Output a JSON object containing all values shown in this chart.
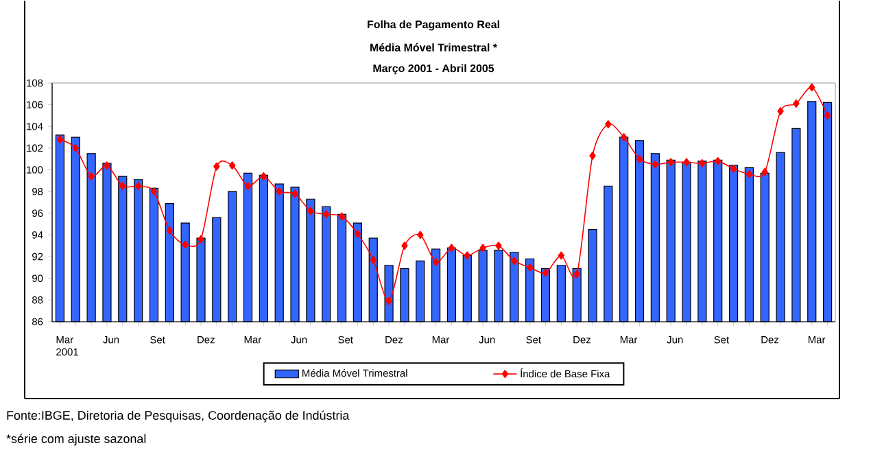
{
  "chart_data": {
    "type": "bar",
    "title": "Folha de Pagamento Real",
    "subtitle": "Média Móvel Trimestral *",
    "annotations": [
      "Março 2001 - Abril 2005",
      "Fonte:IBGE, Diretoria de Pesquisas, Coordenação de Indústria",
      "*série com ajuste sazonal"
    ],
    "categories": [
      "Mar 2001",
      null,
      null,
      "Jun",
      null,
      null,
      "Set",
      null,
      null,
      "Dez",
      null,
      null,
      "Mar",
      null,
      null,
      "Jun",
      null,
      null,
      "Set",
      null,
      null,
      "Dez",
      null,
      null,
      "Mar",
      null,
      null,
      "Jun",
      null,
      null,
      "Set",
      null,
      null,
      "Dez",
      null,
      null,
      "Mar",
      null,
      null,
      "Jun",
      null,
      null,
      "Set",
      null,
      null,
      "Dez",
      null,
      null,
      "Mar",
      null
    ],
    "series": [
      {
        "name": "Média Móvel Trimestral",
        "color": "#3366ff",
        "values": [
          103.2,
          103.0,
          101.5,
          100.6,
          99.4,
          99.1,
          98.3,
          96.9,
          95.1,
          93.7,
          95.6,
          98.0,
          99.7,
          99.5,
          98.7,
          98.4,
          97.3,
          96.6,
          95.9,
          95.1,
          93.7,
          91.2,
          90.9,
          91.6,
          92.7,
          92.8,
          92.1,
          92.6,
          92.6,
          92.4,
          91.8,
          90.9,
          91.2,
          90.9,
          94.5,
          98.5,
          103.0,
          102.7,
          101.5,
          100.9,
          100.7,
          100.8,
          100.9,
          100.4,
          100.2,
          99.7,
          101.6,
          103.8,
          106.3,
          106.2
        ]
      },
      {
        "name": "Índice de Base Fixa",
        "type": "line",
        "color": "#ff0000",
        "marker": "diamond",
        "values": [
          102.8,
          102.0,
          99.4,
          100.4,
          98.5,
          98.5,
          98.0,
          94.4,
          93.1,
          93.6,
          100.3,
          100.4,
          98.5,
          99.4,
          98.0,
          97.8,
          96.2,
          95.9,
          95.7,
          94.1,
          91.7,
          87.9,
          93.0,
          94.0,
          91.5,
          92.8,
          92.1,
          92.8,
          93.0,
          91.6,
          91.0,
          90.5,
          92.1,
          90.4,
          101.3,
          104.2,
          103.0,
          101.0,
          100.5,
          100.7,
          100.7,
          100.6,
          100.8,
          100.1,
          99.6,
          99.8,
          105.4,
          106.1,
          107.6,
          105.0
        ]
      }
    ],
    "ylim": [
      86,
      108
    ],
    "yticks": [
      86,
      88,
      90,
      92,
      94,
      96,
      98,
      100,
      102,
      104,
      106,
      108
    ],
    "grid": false,
    "legend": "bottom"
  }
}
